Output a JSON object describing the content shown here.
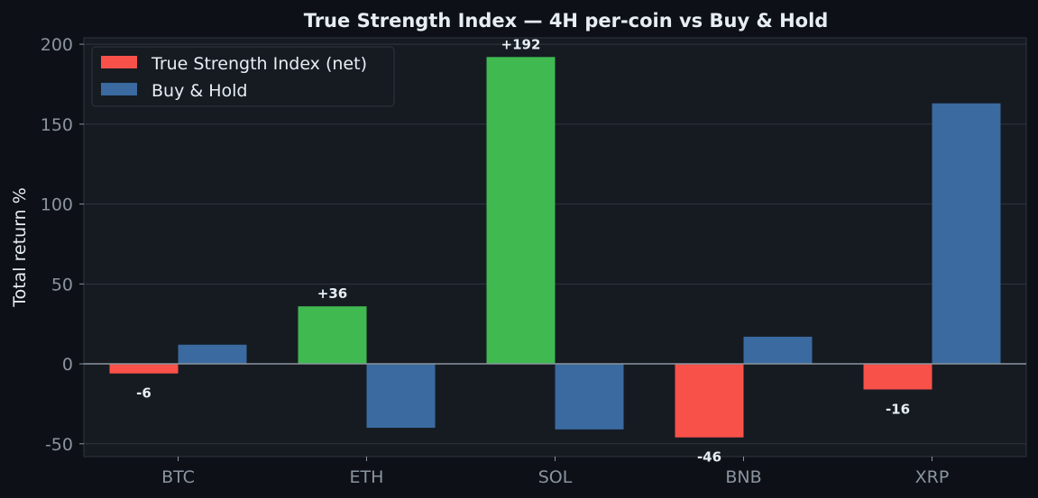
{
  "chart_data": {
    "type": "bar",
    "title": "True Strength Index — 4H per-coin vs Buy & Hold",
    "xlabel": "",
    "ylabel": "Total return %",
    "categories": [
      "BTC",
      "ETH",
      "SOL",
      "BNB",
      "XRP"
    ],
    "series": [
      {
        "name": "True Strength Index (net)",
        "values": [
          -6,
          36,
          192,
          -46,
          -16
        ],
        "labels": [
          "-6",
          "+36",
          "+192",
          "-46",
          "-16"
        ],
        "positive_color": "#3fb950",
        "negative_color": "#f85149"
      },
      {
        "name": "Buy & Hold",
        "values": [
          12,
          -40,
          -41,
          17,
          163
        ],
        "color": "#3a6aa0"
      }
    ],
    "ylim": [
      -58,
      204
    ],
    "yticks": [
      -50,
      0,
      50,
      100,
      150,
      200
    ],
    "ytick_labels": [
      "-50",
      "0",
      "50",
      "100",
      "150",
      "200"
    ],
    "grid": "horizontal",
    "legend_position": "top-left",
    "colors": {
      "background": "#0d1117",
      "plot_background": "#161b22",
      "text": "#e6edf3",
      "tick_text": "#8b949e",
      "grid": "#30363d",
      "zero_line": "#8b949e"
    }
  }
}
